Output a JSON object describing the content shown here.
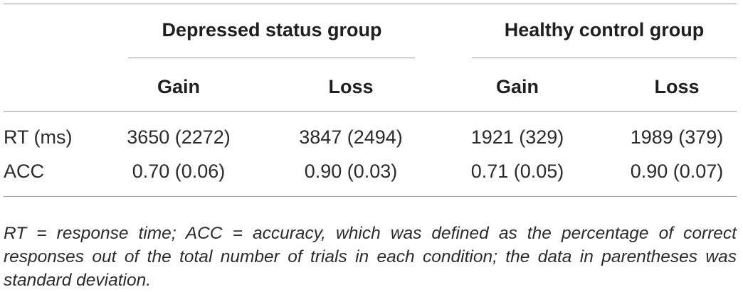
{
  "table": {
    "group_headers": [
      "Depressed status group",
      "Healthy control group"
    ],
    "sub_headers": [
      "Gain",
      "Loss",
      "Gain",
      "Loss"
    ],
    "rows": [
      {
        "label": "RT (ms)",
        "values": [
          "3650 (2272)",
          "3847 (2494)",
          "1921 (329)",
          "1989 (379)"
        ]
      },
      {
        "label": "ACC",
        "values": [
          "0.70 (0.06)",
          "0.90 (0.03)",
          "0.71 (0.05)",
          "0.90 (0.07)"
        ]
      }
    ],
    "footnote": "RT = response time; ACC = accuracy, which was defined as the percentage of correct responses out of the total number of trials in each condition; the data in parentheses was standard deviation."
  }
}
